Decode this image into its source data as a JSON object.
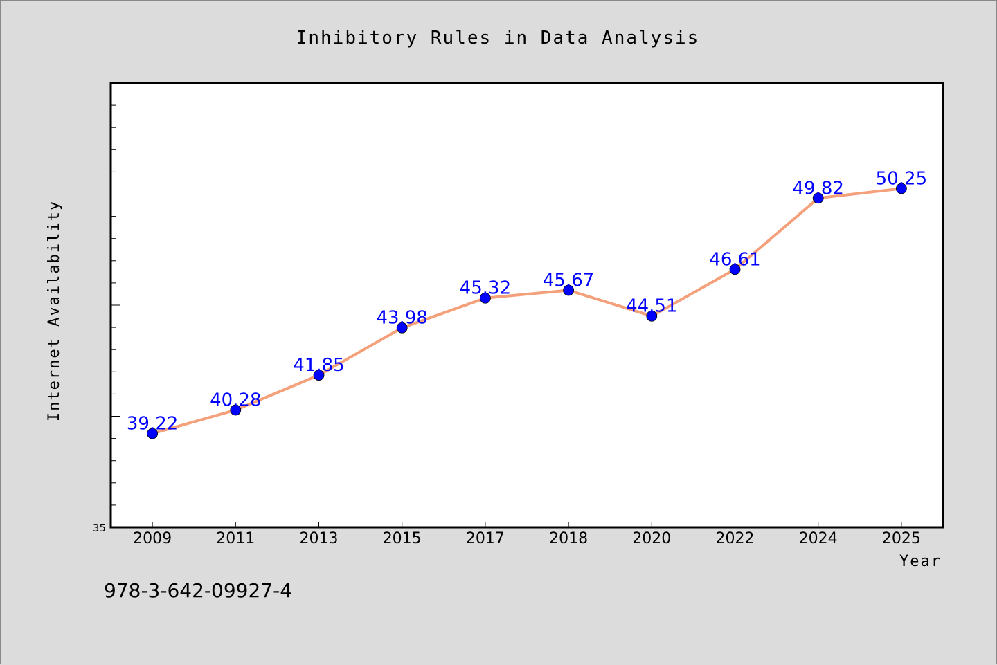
{
  "chart_data": {
    "type": "line",
    "title": "Inhibitory Rules in Data Analysis",
    "xlabel": "Year",
    "ylabel": "Internet Availability",
    "categories": [
      "2009",
      "2011",
      "2013",
      "2015",
      "2017",
      "2018",
      "2020",
      "2022",
      "2024",
      "2025"
    ],
    "series": [
      {
        "values": [
          39.22,
          40.28,
          41.85,
          43.98,
          45.32,
          45.67,
          44.51,
          46.61,
          49.82,
          50.25
        ]
      }
    ],
    "data_labels": [
      "39.22",
      "40.28",
      "41.85",
      "43.98",
      "45.32",
      "45.67",
      "44.51",
      "46.61",
      "49.82",
      "50.25"
    ],
    "ylim": [
      35,
      55
    ],
    "y_tick_labels": [
      "35"
    ],
    "grid": false,
    "colors": {
      "line": "#f4a07a",
      "marker": "#0000ff",
      "label": "#0000ff",
      "background": "#dcdcdc",
      "plot_background": "#ffffff"
    }
  },
  "footer": {
    "isbn": "978-3-642-09927-4"
  }
}
